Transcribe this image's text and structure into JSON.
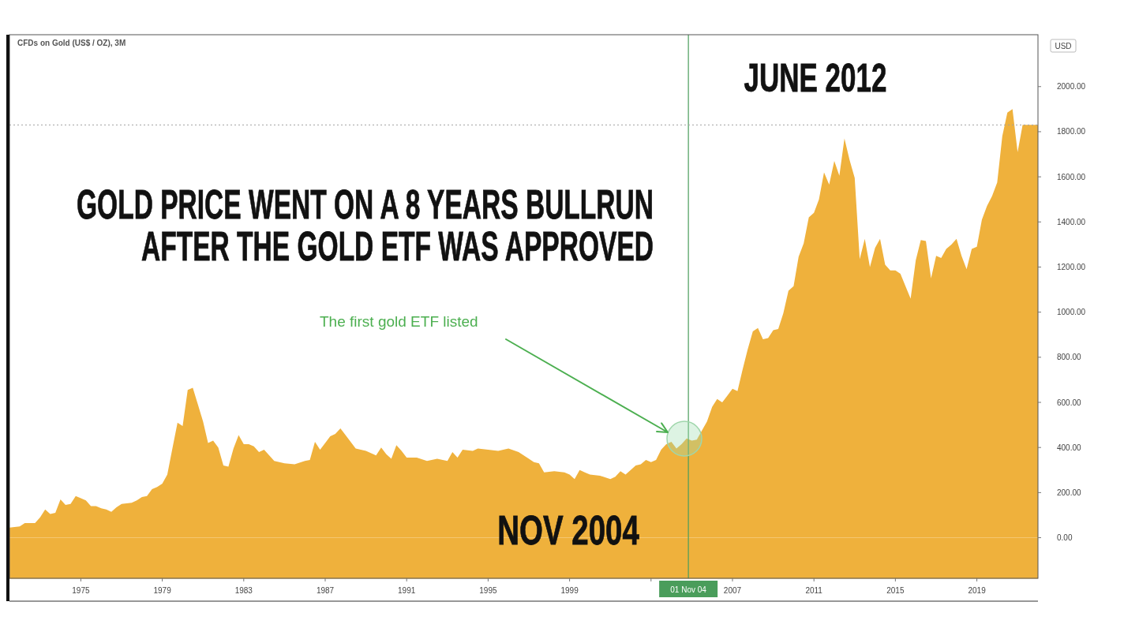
{
  "chart_data": {
    "type": "area",
    "title": "CFDs on Gold (US$ / OZ), 3M",
    "ylabel": "USD",
    "color": "#efb13c",
    "x": [
      "1971-07",
      "1972-01",
      "1972-04",
      "1972-10",
      "1973-01",
      "1973-04",
      "1973-07",
      "1973-10",
      "1974-01",
      "1974-04",
      "1974-07",
      "1974-10",
      "1975-01",
      "1975-04",
      "1975-07",
      "1975-10",
      "1976-01",
      "1976-04",
      "1976-07",
      "1976-10",
      "1977-01",
      "1977-07",
      "1977-10",
      "1978-01",
      "1978-04",
      "1978-07",
      "1978-10",
      "1979-01",
      "1979-04",
      "1979-07",
      "1979-10",
      "1980-01",
      "1980-04",
      "1980-07",
      "1980-10",
      "1981-01",
      "1981-04",
      "1981-07",
      "1981-10",
      "1982-01",
      "1982-04",
      "1982-07",
      "1982-10",
      "1983-01",
      "1983-04",
      "1983-07",
      "1983-10",
      "1984-01",
      "1984-07",
      "1985-01",
      "1985-07",
      "1986-01",
      "1986-04",
      "1986-07",
      "1986-10",
      "1987-01",
      "1987-04",
      "1987-07",
      "1987-10",
      "1988-01",
      "1988-07",
      "1989-01",
      "1989-07",
      "1989-10",
      "1990-01",
      "1990-04",
      "1990-07",
      "1990-10",
      "1991-01",
      "1991-07",
      "1992-01",
      "1992-07",
      "1993-01",
      "1993-04",
      "1993-07",
      "1993-10",
      "1994-04",
      "1994-07",
      "1995-01",
      "1995-07",
      "1996-01",
      "1996-07",
      "1997-01",
      "1997-04",
      "1997-07",
      "1997-10",
      "1998-04",
      "1998-10",
      "1999-01",
      "1999-04",
      "1999-07",
      "1999-10",
      "2000-01",
      "2000-07",
      "2001-01",
      "2001-04",
      "2001-07",
      "2001-10",
      "2002-01",
      "2002-04",
      "2002-07",
      "2002-10",
      "2003-01",
      "2003-04",
      "2003-07",
      "2003-10",
      "2004-01",
      "2004-04",
      "2004-07",
      "2004-10",
      "2005-01",
      "2005-04",
      "2005-07",
      "2005-10",
      "2006-01",
      "2006-04",
      "2006-07",
      "2006-10",
      "2007-01",
      "2007-04",
      "2007-07",
      "2007-10",
      "2008-01",
      "2008-04",
      "2008-07",
      "2008-10",
      "2009-01",
      "2009-04",
      "2009-07",
      "2009-10",
      "2010-01",
      "2010-04",
      "2010-07",
      "2010-10",
      "2011-01",
      "2011-04",
      "2011-07",
      "2011-10",
      "2012-01",
      "2012-04",
      "2012-07",
      "2012-10",
      "2013-01",
      "2013-04",
      "2013-07",
      "2013-10",
      "2014-01",
      "2014-04",
      "2014-07",
      "2014-10",
      "2015-01",
      "2015-04",
      "2015-07",
      "2015-10",
      "2016-01",
      "2016-04",
      "2016-07",
      "2016-10",
      "2017-01",
      "2017-04",
      "2017-07",
      "2017-10",
      "2018-01",
      "2018-04",
      "2018-07",
      "2018-10",
      "2019-01",
      "2019-04",
      "2019-07",
      "2019-10",
      "2020-01",
      "2020-04",
      "2020-07",
      "2020-10",
      "2021-01",
      "2021-04",
      "2022-01"
    ],
    "values": [
      45,
      50,
      65,
      65,
      90,
      125,
      105,
      110,
      170,
      145,
      150,
      185,
      175,
      165,
      140,
      140,
      130,
      125,
      115,
      135,
      150,
      155,
      165,
      180,
      185,
      215,
      225,
      240,
      280,
      395,
      510,
      495,
      655,
      665,
      590,
      515,
      420,
      430,
      400,
      320,
      315,
      395,
      455,
      415,
      415,
      405,
      380,
      390,
      340,
      330,
      325,
      340,
      345,
      425,
      390,
      420,
      450,
      460,
      485,
      455,
      395,
      385,
      365,
      400,
      370,
      350,
      410,
      385,
      355,
      355,
      340,
      350,
      340,
      380,
      355,
      390,
      385,
      395,
      390,
      385,
      395,
      380,
      350,
      335,
      330,
      290,
      295,
      290,
      280,
      260,
      300,
      290,
      280,
      275,
      260,
      270,
      295,
      280,
      300,
      320,
      325,
      345,
      335,
      345,
      390,
      415,
      425,
      395,
      415,
      440,
      430,
      435,
      475,
      515,
      580,
      615,
      600,
      630,
      660,
      650,
      745,
      835,
      915,
      930,
      880,
      885,
      920,
      925,
      995,
      1095,
      1115,
      1245,
      1305,
      1420,
      1440,
      1500,
      1620,
      1565,
      1670,
      1605,
      1770,
      1675,
      1595,
      1235,
      1325,
      1200,
      1285,
      1325,
      1210,
      1185,
      1185,
      1170,
      1115,
      1060,
      1230,
      1320,
      1315,
      1150,
      1250,
      1240,
      1280,
      1300,
      1325,
      1250,
      1190,
      1280,
      1290,
      1410,
      1470,
      1515,
      1575,
      1780,
      1885,
      1900,
      1710,
      1830,
      1830
    ],
    "xlim": [
      "1971-07",
      "2022-01"
    ],
    "ylim": [
      -180,
      2230
    ],
    "xticks": [
      "1975",
      "1979",
      "1983",
      "1987",
      "1991",
      "1995",
      "1999",
      {
        "value": "2003",
        "label": null
      },
      "2007",
      "2011",
      "2015",
      "2019"
    ],
    "yticks": [
      {
        "value": 0,
        "label": "0.00"
      },
      {
        "value": 200,
        "label": "200.00"
      },
      {
        "value": 400,
        "label": "400.00"
      },
      {
        "value": 600,
        "label": "600.00"
      },
      {
        "value": 800,
        "label": "800.00"
      },
      {
        "value": 1000,
        "label": "1000.00"
      },
      {
        "value": 1200,
        "label": "1200.00"
      },
      {
        "value": 1400,
        "label": "1400.00"
      },
      {
        "value": 1600,
        "label": "1600.00"
      },
      {
        "value": 1800,
        "label": "1800.00"
      },
      {
        "value": 2000,
        "label": "2000.00"
      }
    ],
    "ref_lines": [
      {
        "axis": "x",
        "value": "2004-11",
        "label": "01 Nov 04",
        "color": "#4a9d5b"
      },
      {
        "axis": "y",
        "value": 1830,
        "color": "#a0a0a0",
        "line_style": "dotted"
      }
    ],
    "bands": [
      {
        "axis": "y",
        "from": -180,
        "to": 0,
        "color": "#efb13c"
      }
    ],
    "annotations": [
      "JUNE 2012",
      "GOLD PRICE WENT ON A 8 YEARS BULLRUN",
      "AFTER THE GOLD ETF WAS APPROVED",
      "The first gold ETF listed",
      "NOV 2004"
    ]
  }
}
